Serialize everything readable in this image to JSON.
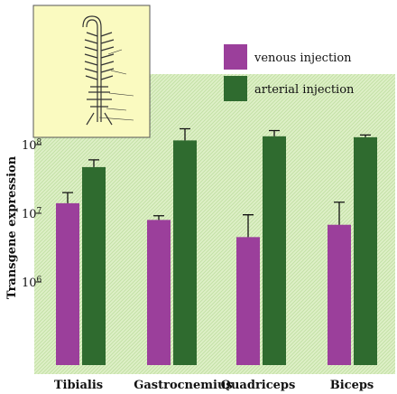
{
  "chart_data": {
    "type": "bar",
    "ylabel": "Transgene expression",
    "yscale": "log",
    "ylim": [
      100000,
      10000000000
    ],
    "yticks": [
      {
        "value": 1000000,
        "label_base": "10",
        "label_exp": "6"
      },
      {
        "value": 10000000,
        "label_base": "10",
        "label_exp": "7"
      },
      {
        "value": 100000000,
        "label_base": "10",
        "label_exp": "8"
      }
    ],
    "categories": [
      "Tibialis",
      "Gastrocnemius",
      "Quadriceps",
      "Biceps"
    ],
    "series": [
      {
        "name": "venous injection",
        "color": "#9b3f9b",
        "values": [
          14000000,
          8000000,
          4500000,
          6800000
        ],
        "error_upper": [
          20000000,
          9200000,
          9500000,
          14500000
        ]
      },
      {
        "name": "arterial injection",
        "color": "#2f6b2f",
        "values": [
          47000000,
          115000000,
          132000000,
          128000000
        ],
        "error_upper": [
          60000000,
          170000000,
          160000000,
          138000000
        ]
      }
    ],
    "legend_position": "top-right",
    "background": "light green hatched",
    "inset": "anatomical drawing of limb arterial tree"
  }
}
